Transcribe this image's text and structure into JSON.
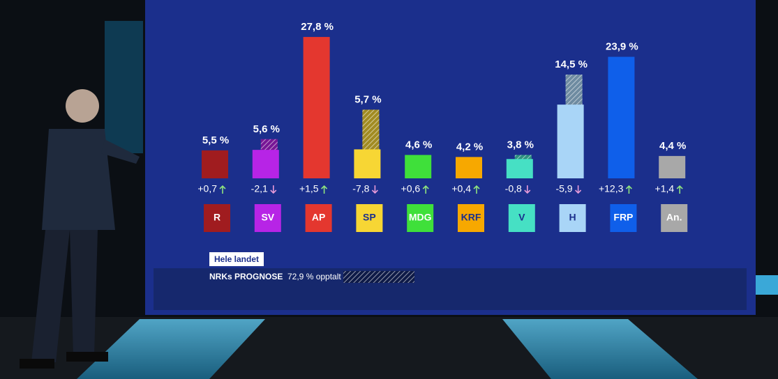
{
  "chart_data": {
    "type": "bar",
    "categories": [
      "R",
      "SV",
      "AP",
      "SP",
      "MDG",
      "KRF",
      "V",
      "H",
      "FRP",
      "An."
    ],
    "values": [
      5.5,
      5.6,
      27.8,
      5.7,
      4.6,
      4.2,
      3.8,
      14.5,
      23.9,
      4.4
    ],
    "value_labels": [
      "5,5 %",
      "5,6 %",
      "27,8 %",
      "5,7 %",
      "4,6 %",
      "4,2 %",
      "3,8 %",
      "14,5 %",
      "23,9 %",
      "4,4 %"
    ],
    "changes": [
      0.7,
      -2.1,
      1.5,
      -7.8,
      0.6,
      0.4,
      -0.8,
      -5.9,
      12.3,
      1.4
    ],
    "change_labels": [
      "+0,7",
      "-2,1",
      "+1,5",
      "-7,8",
      "+0,6",
      "+0,4",
      "-0,8",
      "-5,9",
      "+12,3",
      "+1,4"
    ],
    "colors": [
      "#a01c1f",
      "#b724e6",
      "#e4372f",
      "#f7d634",
      "#3fe03a",
      "#f7a800",
      "#46e0c4",
      "#a9d5f7",
      "#0f5fea",
      "#a8a8a8"
    ]
  },
  "footer": {
    "region": "Hele landet",
    "title": "NRKs PROGNOSE",
    "counted": "72,9 % opptalt"
  }
}
